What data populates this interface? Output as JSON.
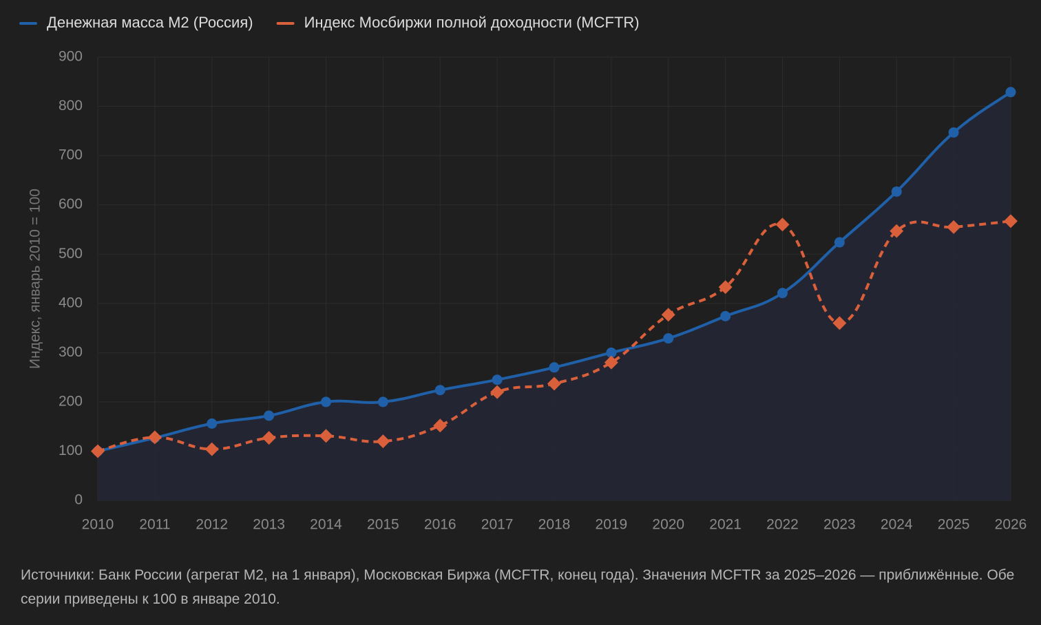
{
  "chart_data": {
    "type": "line",
    "y_label": "Индекс, январь 2010 = 100",
    "caption": "Источники: Банк России (агрегат М2, на 1 января), Московская Биржа (MCFTR, конец года). Значения MCFTR за 2025–2026 — приближённые. Обе серии приведены к 100 в январе 2010.",
    "categories": [
      "2010",
      "2011",
      "2012",
      "2013",
      "2014",
      "2015",
      "2016",
      "2017",
      "2018",
      "2019",
      "2020",
      "2021",
      "2022",
      "2023",
      "2024",
      "2025",
      "2026"
    ],
    "series": [
      {
        "name": "Денежная масса М2 (Россия)",
        "color": "#1f60a8",
        "marker": "circle",
        "line_style": "solid",
        "area": true,
        "values": [
          100,
          127,
          156,
          172,
          200,
          200,
          224,
          245,
          270,
          300,
          329,
          374,
          421,
          524,
          627,
          747,
          829
        ]
      },
      {
        "name": "Индекс Мосбиржи полной доходности (MCFTR)",
        "color": "#d9603b",
        "marker": "diamond",
        "line_style": "dashed",
        "area": false,
        "values": [
          100,
          128,
          104,
          127,
          131,
          120,
          152,
          220,
          237,
          280,
          377,
          433,
          560,
          360,
          547,
          555,
          567
        ]
      }
    ],
    "ylim": [
      0,
      900
    ],
    "yticks": [
      0,
      100,
      200,
      300,
      400,
      500,
      600,
      700,
      800,
      900
    ],
    "grid": true
  }
}
